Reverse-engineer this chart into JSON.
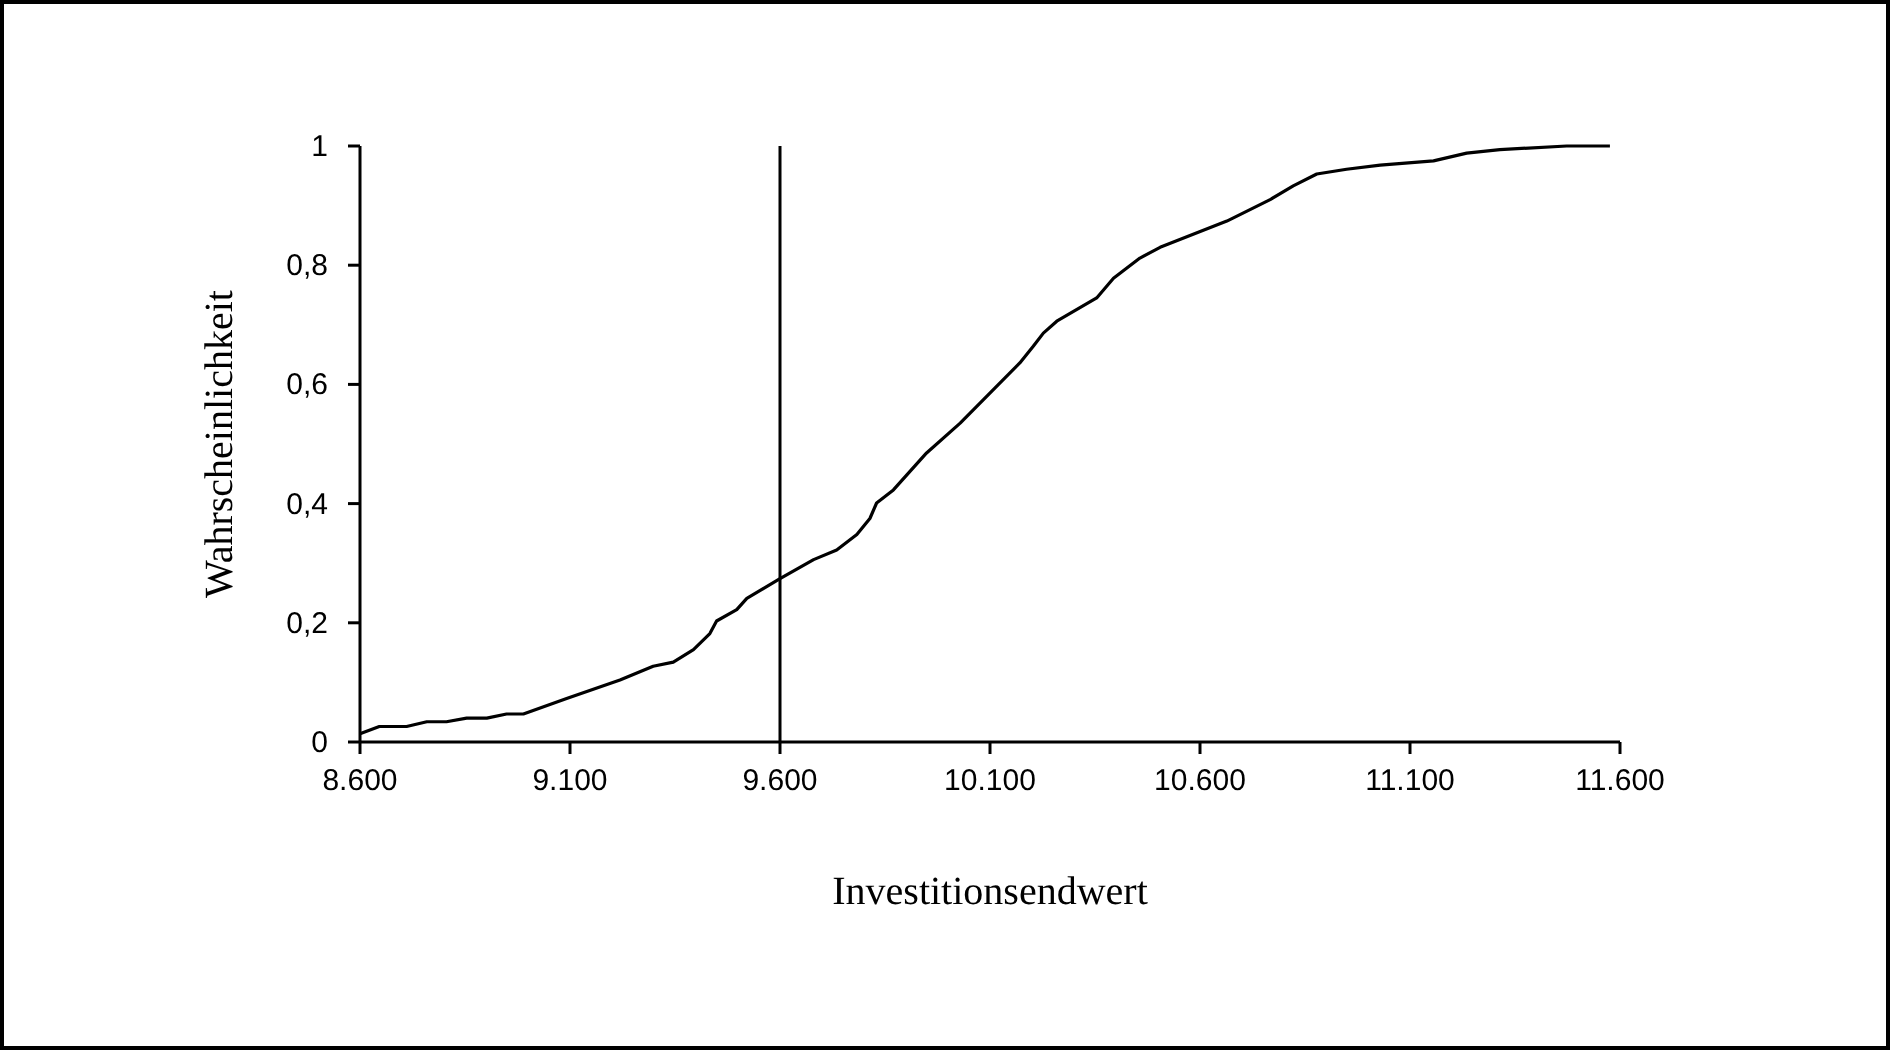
{
  "chart_data": {
    "type": "line",
    "xlabel": "Investitionsendwert",
    "ylabel": "Wahrscheinlichkeit",
    "x": [
      8600,
      8646,
      8711,
      8759,
      8806,
      8854,
      8902,
      8949,
      8989,
      9092,
      9219,
      9298,
      9346,
      9394,
      9433,
      9449,
      9497,
      9521,
      9600,
      9680,
      9735,
      9783,
      9814,
      9830,
      9870,
      9949,
      10029,
      10171,
      10203,
      10227,
      10259,
      10354,
      10394,
      10457,
      10505,
      10664,
      10767,
      10822,
      10878,
      10949,
      11029,
      11156,
      11235,
      11314,
      11473,
      11576
    ],
    "series": [
      {
        "color": "#000000",
        "values": [
          0.014,
          0.026,
          0.026,
          0.034,
          0.034,
          0.04,
          0.04,
          0.047,
          0.047,
          0.073,
          0.104,
          0.127,
          0.134,
          0.155,
          0.182,
          0.203,
          0.222,
          0.241,
          0.274,
          0.306,
          0.322,
          0.348,
          0.375,
          0.401,
          0.423,
          0.485,
          0.535,
          0.636,
          0.664,
          0.686,
          0.706,
          0.745,
          0.778,
          0.812,
          0.83,
          0.874,
          0.91,
          0.933,
          0.953,
          0.961,
          0.968,
          0.975,
          0.988,
          0.994,
          1.0,
          1.0
        ]
      }
    ],
    "xlim": [
      8600,
      11600
    ],
    "ylim": [
      0,
      1
    ],
    "xticks": [
      {
        "value": 8600,
        "label": "8.600"
      },
      {
        "value": 9100,
        "label": "9.100"
      },
      {
        "value": 9600,
        "label": "9.600"
      },
      {
        "value": 10100,
        "label": "10.100"
      },
      {
        "value": 10600,
        "label": "10.600"
      },
      {
        "value": 11100,
        "label": "11.100"
      },
      {
        "value": 11600,
        "label": "11.600"
      }
    ],
    "yticks": [
      0,
      {
        "value": 0.2,
        "label": "0,2"
      },
      {
        "value": 0.4,
        "label": "0,4"
      },
      {
        "value": 0.6,
        "label": "0,6"
      },
      {
        "value": 0.8,
        "label": "0,8"
      },
      1
    ],
    "ref_lines": [
      {
        "axis": "x",
        "value": 9600,
        "color": "#000000"
      }
    ],
    "grid": false,
    "marker": "none",
    "line_style": "solid"
  }
}
